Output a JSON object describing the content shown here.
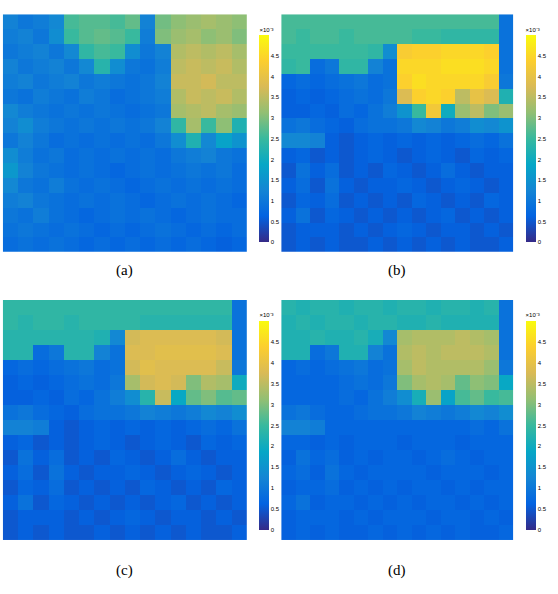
{
  "chart_data": [
    {
      "type": "heatmap",
      "title": "(a)",
      "tick_labels": false,
      "colorbar": {
        "range": [
          0,
          5
        ],
        "ticks": [
          0,
          0.5,
          1,
          1.5,
          2,
          2.5,
          3,
          3.5,
          4,
          4.5
        ],
        "label": "×10⁻³"
      },
      "cells": [
        [
          1.2,
          1.0,
          1.1,
          1.3,
          2.6,
          2.7,
          2.7,
          2.6,
          2.8,
          1.2,
          2.9,
          3.1,
          3.2,
          3.3,
          3.2,
          3.1
        ],
        [
          1.1,
          1.2,
          1.0,
          1.4,
          2.5,
          2.7,
          2.8,
          2.7,
          2.5,
          1.1,
          3.0,
          3.2,
          3.3,
          3.1,
          3.2,
          3.0
        ],
        [
          1.0,
          1.1,
          1.2,
          1.0,
          1.3,
          2.4,
          2.6,
          2.5,
          1.4,
          1.0,
          1.2,
          3.4,
          3.5,
          3.4,
          3.5,
          3.3
        ],
        [
          1.2,
          1.0,
          1.1,
          1.2,
          1.0,
          1.3,
          2.3,
          1.4,
          1.0,
          0.9,
          1.1,
          3.5,
          3.6,
          3.5,
          3.6,
          3.4
        ],
        [
          1.1,
          1.2,
          1.0,
          1.1,
          1.2,
          1.0,
          1.1,
          1.0,
          0.9,
          1.0,
          1.2,
          3.6,
          3.6,
          3.7,
          3.5,
          3.5
        ],
        [
          1.0,
          0.9,
          1.1,
          1.0,
          0.9,
          1.1,
          1.0,
          0.8,
          0.9,
          1.0,
          1.1,
          3.4,
          3.6,
          3.5,
          3.6,
          3.4
        ],
        [
          1.3,
          1.1,
          1.0,
          0.9,
          1.0,
          0.9,
          1.0,
          0.9,
          0.8,
          0.9,
          1.0,
          3.3,
          3.4,
          3.5,
          3.3,
          3.2
        ],
        [
          1.2,
          1.4,
          1.1,
          1.0,
          0.9,
          1.0,
          0.9,
          1.0,
          0.9,
          1.0,
          1.2,
          2.4,
          3.3,
          2.5,
          3.1,
          2.2
        ],
        [
          1.0,
          1.2,
          1.0,
          0.8,
          0.9,
          0.8,
          0.9,
          0.8,
          0.9,
          0.8,
          1.0,
          1.4,
          2.2,
          1.3,
          1.8,
          1.5
        ],
        [
          1.4,
          1.1,
          0.9,
          1.0,
          0.8,
          0.9,
          0.8,
          0.9,
          0.8,
          0.9,
          0.8,
          1.0,
          1.1,
          1.2,
          1.0,
          0.9
        ],
        [
          1.6,
          1.2,
          1.0,
          0.9,
          0.8,
          0.9,
          0.8,
          0.7,
          0.8,
          0.9,
          0.8,
          0.9,
          1.0,
          0.9,
          1.0,
          0.8
        ],
        [
          1.3,
          1.0,
          0.9,
          1.1,
          0.9,
          0.8,
          0.9,
          0.8,
          0.7,
          0.8,
          0.9,
          0.8,
          0.9,
          0.8,
          0.9,
          0.8
        ],
        [
          1.1,
          1.2,
          1.0,
          0.9,
          0.8,
          0.9,
          0.8,
          0.9,
          0.8,
          0.7,
          0.8,
          0.9,
          0.8,
          0.9,
          0.8,
          0.7
        ],
        [
          1.0,
          0.9,
          1.1,
          0.9,
          0.8,
          0.7,
          0.8,
          0.9,
          0.8,
          0.9,
          0.8,
          0.7,
          0.8,
          0.9,
          0.8,
          0.8
        ],
        [
          0.9,
          1.0,
          0.9,
          0.8,
          0.9,
          0.8,
          0.7,
          0.8,
          0.7,
          0.8,
          0.9,
          0.8,
          0.7,
          0.8,
          0.7,
          0.8
        ],
        [
          0.8,
          0.9,
          0.8,
          0.9,
          0.8,
          0.7,
          0.8,
          0.7,
          0.8,
          0.7,
          0.8,
          0.7,
          0.8,
          0.7,
          0.6,
          0.7
        ]
      ]
    },
    {
      "type": "heatmap",
      "title": "(b)",
      "tick_labels": false,
      "colorbar": {
        "range": [
          0,
          5
        ],
        "ticks": [
          0,
          0.5,
          1,
          1.5,
          2,
          2.5,
          3,
          3.5,
          4,
          4.5
        ],
        "label": "×10⁻³"
      },
      "cells": [
        [
          2.6,
          2.6,
          2.6,
          2.6,
          2.6,
          2.6,
          2.6,
          2.6,
          2.6,
          2.6,
          2.6,
          2.6,
          2.6,
          2.6,
          2.6,
          0.9
        ],
        [
          2.6,
          2.5,
          2.6,
          2.6,
          2.5,
          2.6,
          2.6,
          2.6,
          2.6,
          2.5,
          2.5,
          2.4,
          2.4,
          2.4,
          2.4,
          0.9
        ],
        [
          2.5,
          2.5,
          2.5,
          2.5,
          2.5,
          2.5,
          2.4,
          1.4,
          4.3,
          4.4,
          4.4,
          4.5,
          4.5,
          4.5,
          4.4,
          0.9
        ],
        [
          2.4,
          2.5,
          0.8,
          1.0,
          2.4,
          2.4,
          1.2,
          0.9,
          4.5,
          4.5,
          4.5,
          4.6,
          4.6,
          4.6,
          4.5,
          0.9
        ],
        [
          0.7,
          0.8,
          0.7,
          0.8,
          0.9,
          1.0,
          0.8,
          0.9,
          4.4,
          4.6,
          4.5,
          4.5,
          4.5,
          4.5,
          4.3,
          1.0
        ],
        [
          0.6,
          0.7,
          0.6,
          0.7,
          0.8,
          0.9,
          0.8,
          1.0,
          3.8,
          4.4,
          4.5,
          4.4,
          3.5,
          4.0,
          3.8,
          2.2
        ],
        [
          0.6,
          0.6,
          0.7,
          0.6,
          0.8,
          0.7,
          0.9,
          1.1,
          1.5,
          2.5,
          4.2,
          2.0,
          3.2,
          3.5,
          3.0,
          3.2
        ],
        [
          0.9,
          1.0,
          0.8,
          0.7,
          0.6,
          0.8,
          0.9,
          0.9,
          1.0,
          1.3,
          1.2,
          1.0,
          1.1,
          1.4,
          1.3,
          1.5
        ],
        [
          1.3,
          1.3,
          1.2,
          0.6,
          0.5,
          0.6,
          0.7,
          0.6,
          0.7,
          0.6,
          0.7,
          0.6,
          0.7,
          0.8,
          0.7,
          0.9
        ],
        [
          0.6,
          0.7,
          0.5,
          0.6,
          0.5,
          0.6,
          0.7,
          0.6,
          0.5,
          0.6,
          0.7,
          0.6,
          0.5,
          0.7,
          0.6,
          0.7
        ],
        [
          0.5,
          0.9,
          0.6,
          0.8,
          0.5,
          0.6,
          0.5,
          0.7,
          0.6,
          0.5,
          0.6,
          0.8,
          0.6,
          0.5,
          0.6,
          0.6
        ],
        [
          0.6,
          0.8,
          0.5,
          0.9,
          0.6,
          0.5,
          0.6,
          0.6,
          0.7,
          0.6,
          0.5,
          0.6,
          0.7,
          0.6,
          0.5,
          0.6
        ],
        [
          0.5,
          0.7,
          0.6,
          0.8,
          0.5,
          0.6,
          0.5,
          0.6,
          0.5,
          0.7,
          0.6,
          0.5,
          0.6,
          0.5,
          0.7,
          0.6
        ],
        [
          0.6,
          0.9,
          0.5,
          0.7,
          0.6,
          0.5,
          0.6,
          0.5,
          0.6,
          0.5,
          0.6,
          0.7,
          0.5,
          0.6,
          0.5,
          0.6
        ],
        [
          0.5,
          0.6,
          0.6,
          0.6,
          0.5,
          0.6,
          0.5,
          0.6,
          0.7,
          0.6,
          0.5,
          0.6,
          0.6,
          0.5,
          0.6,
          0.5
        ],
        [
          0.5,
          0.6,
          0.5,
          0.6,
          0.5,
          0.5,
          0.6,
          0.5,
          0.6,
          0.5,
          0.6,
          0.5,
          0.6,
          0.5,
          0.5,
          0.6
        ]
      ]
    },
    {
      "type": "heatmap",
      "title": "(c)",
      "tick_labels": false,
      "colorbar": {
        "range": [
          0,
          5
        ],
        "ticks": [
          0,
          0.5,
          1,
          1.5,
          2,
          2.5,
          3,
          3.5,
          4,
          4.5
        ],
        "label": "×10⁻³"
      },
      "cells": [
        [
          2.4,
          2.4,
          2.4,
          2.4,
          2.4,
          2.4,
          2.4,
          2.4,
          2.4,
          2.4,
          2.4,
          2.4,
          2.4,
          2.4,
          2.4,
          0.9
        ],
        [
          2.4,
          2.3,
          2.4,
          2.4,
          2.3,
          2.4,
          2.4,
          2.4,
          2.4,
          2.3,
          2.3,
          2.3,
          2.3,
          2.3,
          2.3,
          0.9
        ],
        [
          2.3,
          2.3,
          2.3,
          2.3,
          2.3,
          2.3,
          2.2,
          1.3,
          3.7,
          3.8,
          3.8,
          3.8,
          3.8,
          3.8,
          3.7,
          0.9
        ],
        [
          2.3,
          2.3,
          0.8,
          1.0,
          2.3,
          2.3,
          1.2,
          0.9,
          3.8,
          3.8,
          3.9,
          3.9,
          3.9,
          3.9,
          3.8,
          0.9
        ],
        [
          0.7,
          0.8,
          0.7,
          0.8,
          0.9,
          1.0,
          0.8,
          0.9,
          3.7,
          3.9,
          3.8,
          3.8,
          3.8,
          3.8,
          3.6,
          1.0
        ],
        [
          0.6,
          0.7,
          0.6,
          0.7,
          0.8,
          0.9,
          0.8,
          1.0,
          3.3,
          3.7,
          3.8,
          3.7,
          3.0,
          3.4,
          3.3,
          2.0
        ],
        [
          0.6,
          0.6,
          0.7,
          0.6,
          0.8,
          0.7,
          0.9,
          1.1,
          1.4,
          2.3,
          3.6,
          1.9,
          2.8,
          3.0,
          2.7,
          2.8
        ],
        [
          0.9,
          1.0,
          0.8,
          0.7,
          0.6,
          0.8,
          0.9,
          0.9,
          1.0,
          1.2,
          1.1,
          1.0,
          1.1,
          1.3,
          1.2,
          1.4
        ],
        [
          1.2,
          1.2,
          1.1,
          0.6,
          0.5,
          0.6,
          0.7,
          0.6,
          0.7,
          0.6,
          0.7,
          0.6,
          0.7,
          0.8,
          0.7,
          0.9
        ],
        [
          0.6,
          0.7,
          0.5,
          0.6,
          0.5,
          0.6,
          0.7,
          0.6,
          0.5,
          0.6,
          0.7,
          0.6,
          0.5,
          0.7,
          0.6,
          0.7
        ],
        [
          0.5,
          0.9,
          0.6,
          0.8,
          0.5,
          0.6,
          0.5,
          0.7,
          0.6,
          0.5,
          0.6,
          0.8,
          0.6,
          0.5,
          0.6,
          0.6
        ],
        [
          0.6,
          0.8,
          0.5,
          0.9,
          0.6,
          0.5,
          0.6,
          0.6,
          0.7,
          0.6,
          0.5,
          0.6,
          0.7,
          0.6,
          0.5,
          0.6
        ],
        [
          0.5,
          0.7,
          0.6,
          0.8,
          0.5,
          0.6,
          0.5,
          0.6,
          0.5,
          0.7,
          0.6,
          0.5,
          0.6,
          0.5,
          0.7,
          0.6
        ],
        [
          0.6,
          0.9,
          0.5,
          0.7,
          0.6,
          0.5,
          0.6,
          0.5,
          0.6,
          0.5,
          0.6,
          0.7,
          0.5,
          0.6,
          0.5,
          0.6
        ],
        [
          0.5,
          0.6,
          0.6,
          0.6,
          0.5,
          0.6,
          0.5,
          0.6,
          0.7,
          0.6,
          0.5,
          0.6,
          0.6,
          0.5,
          0.6,
          0.5
        ],
        [
          0.5,
          0.6,
          0.5,
          0.6,
          0.5,
          0.5,
          0.6,
          0.5,
          0.6,
          0.5,
          0.6,
          0.5,
          0.6,
          0.5,
          0.5,
          0.6
        ]
      ]
    },
    {
      "type": "heatmap",
      "title": "(d)",
      "tick_labels": false,
      "colorbar": {
        "range": [
          0,
          5
        ],
        "ticks": [
          0,
          0.5,
          1,
          1.5,
          2,
          2.5,
          3,
          3.5,
          4,
          4.5
        ],
        "label": "×10⁻³"
      },
      "cells": [
        [
          2.3,
          2.2,
          2.3,
          2.3,
          2.2,
          2.3,
          2.3,
          2.2,
          2.3,
          2.3,
          2.2,
          2.3,
          2.3,
          2.2,
          2.3,
          0.9
        ],
        [
          2.2,
          2.3,
          2.2,
          2.3,
          2.3,
          2.2,
          2.3,
          2.3,
          2.2,
          2.2,
          2.3,
          2.2,
          2.2,
          2.2,
          2.2,
          0.9
        ],
        [
          2.2,
          2.2,
          2.3,
          2.2,
          2.2,
          2.3,
          2.1,
          1.3,
          3.3,
          3.4,
          3.4,
          3.4,
          3.5,
          3.4,
          3.3,
          0.9
        ],
        [
          2.2,
          2.2,
          0.8,
          1.0,
          2.2,
          2.2,
          1.2,
          0.9,
          3.4,
          3.5,
          3.4,
          3.5,
          3.5,
          3.5,
          3.4,
          0.9
        ],
        [
          0.7,
          0.8,
          0.7,
          0.8,
          0.9,
          1.0,
          0.8,
          0.9,
          3.3,
          3.5,
          3.4,
          3.4,
          3.4,
          3.4,
          3.2,
          1.0
        ],
        [
          0.7,
          0.7,
          0.7,
          0.7,
          0.8,
          0.9,
          0.8,
          1.0,
          3.0,
          3.3,
          3.4,
          3.3,
          2.8,
          3.1,
          3.0,
          1.9
        ],
        [
          0.7,
          0.7,
          0.7,
          0.7,
          0.8,
          0.7,
          0.9,
          1.1,
          1.4,
          2.1,
          3.2,
          1.8,
          2.6,
          2.8,
          2.5,
          2.6
        ],
        [
          0.9,
          1.0,
          0.8,
          0.7,
          0.7,
          0.8,
          0.9,
          0.9,
          1.0,
          1.2,
          1.1,
          1.0,
          1.1,
          1.3,
          1.2,
          1.4
        ],
        [
          1.2,
          1.2,
          1.1,
          0.7,
          0.7,
          0.7,
          0.7,
          0.7,
          0.7,
          0.7,
          0.7,
          0.7,
          0.7,
          0.8,
          0.7,
          0.9
        ],
        [
          0.7,
          0.7,
          0.6,
          0.7,
          0.6,
          0.7,
          0.7,
          0.7,
          0.6,
          0.7,
          0.7,
          0.7,
          0.6,
          0.7,
          0.7,
          0.7
        ],
        [
          0.6,
          0.9,
          0.7,
          0.8,
          0.6,
          0.7,
          0.6,
          0.7,
          0.7,
          0.6,
          0.7,
          0.8,
          0.7,
          0.6,
          0.7,
          0.7
        ],
        [
          0.7,
          0.8,
          0.6,
          0.9,
          0.7,
          0.6,
          0.7,
          0.7,
          0.7,
          0.7,
          0.6,
          0.7,
          0.7,
          0.7,
          0.6,
          0.7
        ],
        [
          0.6,
          0.7,
          0.7,
          0.8,
          0.6,
          0.7,
          0.6,
          0.7,
          0.6,
          0.7,
          0.7,
          0.6,
          0.7,
          0.6,
          0.7,
          0.7
        ],
        [
          0.7,
          0.9,
          0.6,
          0.7,
          0.7,
          0.6,
          0.7,
          0.6,
          0.7,
          0.6,
          0.7,
          0.7,
          0.6,
          0.7,
          0.6,
          0.7
        ],
        [
          0.6,
          0.7,
          0.7,
          0.7,
          0.6,
          0.7,
          0.6,
          0.7,
          0.7,
          0.7,
          0.6,
          0.7,
          0.7,
          0.6,
          0.7,
          0.6
        ],
        [
          0.6,
          0.7,
          0.6,
          0.7,
          0.6,
          0.6,
          0.7,
          0.6,
          0.7,
          0.6,
          0.7,
          0.6,
          0.7,
          0.6,
          0.6,
          0.7
        ]
      ]
    }
  ]
}
